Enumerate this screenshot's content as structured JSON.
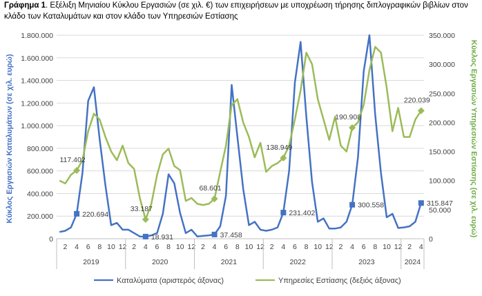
{
  "caption": {
    "prefix": "Γράφημα 1",
    "text": ". Εξέλιξη Μηνιαίου Κύκλου Εργασιών (σε χιλ. €) των επιχειρήσεων με υποχρέωση τήρησης διπλογραφικών βιβλίων στον κλάδο των Καταλυμάτων και στον κλάδο των Υπηρεσιών Εστίασης"
  },
  "chart_data": {
    "type": "line",
    "x_month_ticks": [
      "2",
      "4",
      "6",
      "8",
      "10",
      "12",
      "2",
      "4",
      "6",
      "8",
      "10",
      "12",
      "2",
      "4",
      "6",
      "8",
      "10",
      "12",
      "2",
      "4",
      "6",
      "8",
      "10",
      "12",
      "2",
      "4",
      "6",
      "8",
      "10",
      "12",
      "2",
      "4"
    ],
    "years": [
      "2019",
      "2020",
      "2021",
      "2022",
      "2023",
      "2024"
    ],
    "year_months": [
      12,
      12,
      12,
      12,
      12,
      4
    ],
    "y_left": {
      "label": "Κύκλος Εργασιών Καταλυμάτων (σε χιλ. ευρώ)",
      "min": 0,
      "max": 1800000,
      "step": 200000,
      "tick_labels": [
        "0",
        "200.000",
        "400.000",
        "600.000",
        "800.000",
        "1.000.000",
        "1.200.000",
        "1.400.000",
        "1.600.000",
        "1.800.000"
      ]
    },
    "y_right": {
      "label": "Κύκλος Εργασιών Υπηρεσιών Εστίασης (σε χιλ. ευρώ)",
      "min": 0,
      "max": 350000,
      "step": 50000,
      "tick_labels": [
        "0",
        "50.000",
        "100.000",
        "150.000",
        "200.000",
        "250.000",
        "300.000",
        "350.000"
      ]
    },
    "series": [
      {
        "name": "Καταλύματα (αριστερός άξονας)",
        "axis": "left",
        "color": "#4472C4",
        "values": [
          60000,
          70000,
          100000,
          220694,
          580000,
          1220000,
          1340000,
          880000,
          470000,
          120000,
          140000,
          80000,
          80000,
          50000,
          20000,
          18931,
          30000,
          50000,
          220000,
          570000,
          490000,
          230000,
          50000,
          80000,
          20000,
          25000,
          30000,
          37458,
          110000,
          380000,
          1360000,
          900000,
          440000,
          120000,
          150000,
          80000,
          70000,
          80000,
          100000,
          231402,
          600000,
          1380000,
          1740000,
          1080000,
          500000,
          150000,
          180000,
          90000,
          90000,
          100000,
          150000,
          300558,
          720000,
          1480000,
          1800000,
          1100000,
          580000,
          190000,
          220000,
          95000,
          100000,
          110000,
          150000,
          315847
        ]
      },
      {
        "name": "Υπηρεσίες Εστίασης (δεξιός άξονας)",
        "axis": "right",
        "color": "#9BBB59",
        "values": [
          100000,
          95000,
          110000,
          117402,
          135000,
          185000,
          215000,
          205000,
          175000,
          150000,
          135000,
          160000,
          130000,
          120000,
          70000,
          33187,
          60000,
          110000,
          145000,
          155000,
          125000,
          118000,
          65000,
          70000,
          60000,
          58000,
          60000,
          68601,
          115000,
          160000,
          230000,
          240000,
          200000,
          175000,
          140000,
          165000,
          115000,
          125000,
          130000,
          138949,
          160000,
          205000,
          255000,
          320000,
          300000,
          240000,
          205000,
          170000,
          210000,
          160000,
          150000,
          190908,
          200000,
          230000,
          290000,
          330000,
          320000,
          260000,
          185000,
          225000,
          175000,
          175000,
          205000,
          220039
        ]
      }
    ],
    "data_labels": [
      {
        "series": 0,
        "index": 3,
        "text": "220.694"
      },
      {
        "series": 0,
        "index": 15,
        "text": "18.931"
      },
      {
        "series": 0,
        "index": 27,
        "text": "37.458"
      },
      {
        "series": 0,
        "index": 39,
        "text": "231.402"
      },
      {
        "series": 0,
        "index": 51,
        "text": "300.558"
      },
      {
        "series": 0,
        "index": 63,
        "text": "315.847"
      },
      {
        "series": 1,
        "index": 3,
        "text": "117.402"
      },
      {
        "series": 1,
        "index": 15,
        "text": "33.187"
      },
      {
        "series": 1,
        "index": 27,
        "text": "68.601"
      },
      {
        "series": 1,
        "index": 39,
        "text": "138.949"
      },
      {
        "series": 1,
        "index": 51,
        "text": "190.908"
      },
      {
        "series": 1,
        "index": 63,
        "text": "220.039"
      }
    ],
    "legend_position": "bottom",
    "grid": true
  }
}
